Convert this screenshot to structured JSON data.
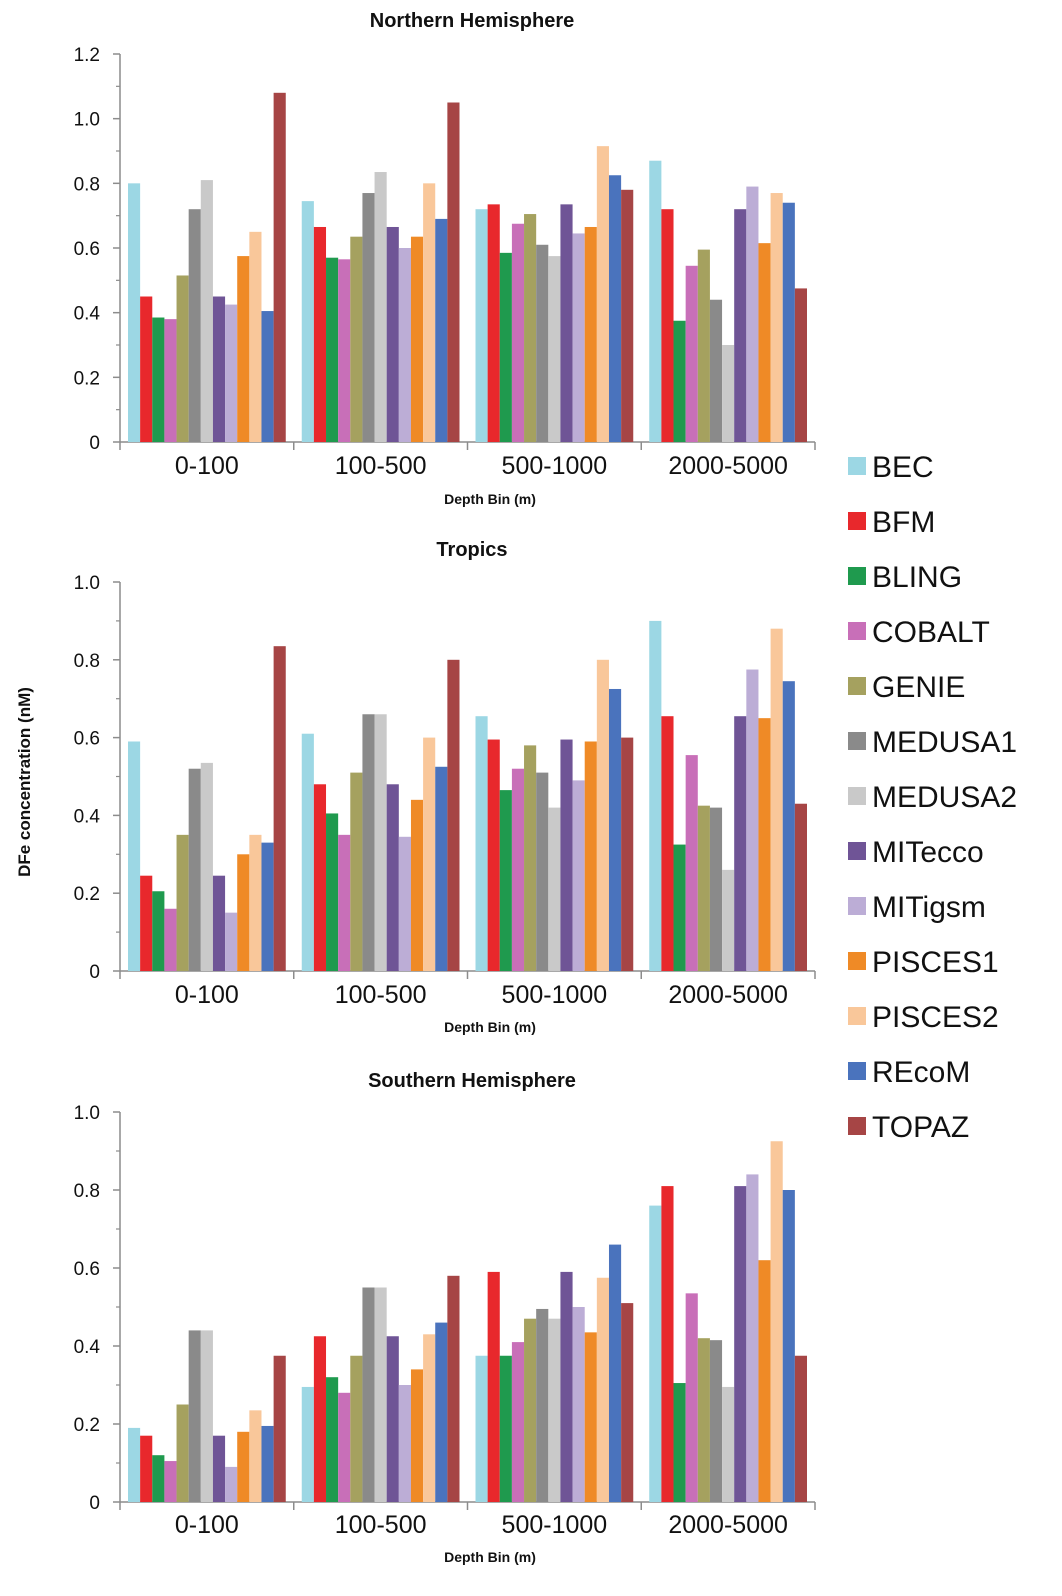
{
  "figure": {
    "ylabel": "DFe concentration (nM)"
  },
  "legend": {
    "entries": [
      {
        "name": "BEC",
        "color": "#9cd7e4"
      },
      {
        "name": "BFM",
        "color": "#e8282c"
      },
      {
        "name": "BLING",
        "color": "#1f9a4e"
      },
      {
        "name": "COBALT",
        "color": "#c86fb8"
      },
      {
        "name": "GENIE",
        "color": "#a5a15f"
      },
      {
        "name": "MEDUSA1",
        "color": "#8a8a8a"
      },
      {
        "name": "MEDUSA2",
        "color": "#c9c9c9"
      },
      {
        "name": "MITecco",
        "color": "#6f5496"
      },
      {
        "name": "MITigsm",
        "color": "#bcadd6"
      },
      {
        "name": "PISCES1",
        "color": "#ef8a26"
      },
      {
        "name": "PISCES2",
        "color": "#f9c79a"
      },
      {
        "name": "REcoM",
        "color": "#4a73bd"
      },
      {
        "name": "TOPAZ",
        "color": "#a64545"
      }
    ]
  },
  "chart_data": [
    {
      "type": "bar",
      "title": "Northern Hemisphere",
      "xlabel": "Depth Bin (m)",
      "ylabel": "DFe concentration (nM)",
      "ylim": [
        0,
        1.2
      ],
      "yticks": [
        "0",
        "0.2",
        "0.4",
        "0.6",
        "0.8",
        "1.0",
        "1.2"
      ],
      "categories": [
        "0-100",
        "100-500",
        "500-1000",
        "2000-5000"
      ],
      "series": [
        {
          "name": "BEC",
          "values": [
            0.8,
            0.745,
            0.72,
            0.87
          ]
        },
        {
          "name": "BFM",
          "values": [
            0.45,
            0.665,
            0.735,
            0.72
          ]
        },
        {
          "name": "BLING",
          "values": [
            0.385,
            0.57,
            0.585,
            0.375
          ]
        },
        {
          "name": "COBALT",
          "values": [
            0.38,
            0.565,
            0.675,
            0.545
          ]
        },
        {
          "name": "GENIE",
          "values": [
            0.515,
            0.635,
            0.705,
            0.595
          ]
        },
        {
          "name": "MEDUSA1",
          "values": [
            0.72,
            0.77,
            0.61,
            0.44
          ]
        },
        {
          "name": "MEDUSA2",
          "values": [
            0.81,
            0.835,
            0.575,
            0.3
          ]
        },
        {
          "name": "MITecco",
          "values": [
            0.45,
            0.665,
            0.735,
            0.72
          ]
        },
        {
          "name": "MITigsm",
          "values": [
            0.425,
            0.6,
            0.645,
            0.79
          ]
        },
        {
          "name": "PISCES1",
          "values": [
            0.575,
            0.635,
            0.665,
            0.615
          ]
        },
        {
          "name": "PISCES2",
          "values": [
            0.65,
            0.8,
            0.915,
            0.77
          ]
        },
        {
          "name": "REcoM",
          "values": [
            0.405,
            0.69,
            0.825,
            0.74
          ]
        },
        {
          "name": "TOPAZ",
          "values": [
            1.08,
            1.05,
            0.78,
            0.475
          ]
        }
      ]
    },
    {
      "type": "bar",
      "title": "Tropics",
      "xlabel": "Depth Bin (m)",
      "ylabel": "DFe concentration (nM)",
      "ylim": [
        0,
        1.0
      ],
      "yticks": [
        "0",
        "0.2",
        "0.4",
        "0.6",
        "0.8",
        "1.0"
      ],
      "categories": [
        "0-100",
        "100-500",
        "500-1000",
        "2000-5000"
      ],
      "series": [
        {
          "name": "BEC",
          "values": [
            0.59,
            0.61,
            0.655,
            0.9
          ]
        },
        {
          "name": "BFM",
          "values": [
            0.245,
            0.48,
            0.595,
            0.655
          ]
        },
        {
          "name": "BLING",
          "values": [
            0.205,
            0.405,
            0.465,
            0.325
          ]
        },
        {
          "name": "COBALT",
          "values": [
            0.16,
            0.35,
            0.52,
            0.555
          ]
        },
        {
          "name": "GENIE",
          "values": [
            0.35,
            0.51,
            0.58,
            0.425
          ]
        },
        {
          "name": "MEDUSA1",
          "values": [
            0.52,
            0.66,
            0.51,
            0.42
          ]
        },
        {
          "name": "MEDUSA2",
          "values": [
            0.535,
            0.66,
            0.42,
            0.26
          ]
        },
        {
          "name": "MITecco",
          "values": [
            0.245,
            0.48,
            0.595,
            0.655
          ]
        },
        {
          "name": "MITigsm",
          "values": [
            0.15,
            0.345,
            0.49,
            0.775
          ]
        },
        {
          "name": "PISCES1",
          "values": [
            0.3,
            0.44,
            0.59,
            0.65
          ]
        },
        {
          "name": "PISCES2",
          "values": [
            0.35,
            0.6,
            0.8,
            0.88
          ]
        },
        {
          "name": "REcoM",
          "values": [
            0.33,
            0.525,
            0.725,
            0.745
          ]
        },
        {
          "name": "TOPAZ",
          "values": [
            0.835,
            0.8,
            0.6,
            0.43
          ]
        }
      ]
    },
    {
      "type": "bar",
      "title": "Southern Hemisphere",
      "xlabel": "Depth Bin (m)",
      "ylabel": "DFe concentration (nM)",
      "ylim": [
        0,
        1.0
      ],
      "yticks": [
        "0",
        "0.2",
        "0.4",
        "0.6",
        "0.8",
        "1.0"
      ],
      "categories": [
        "0-100",
        "100-500",
        "500-1000",
        "2000-5000"
      ],
      "series": [
        {
          "name": "BEC",
          "values": [
            0.19,
            0.295,
            0.375,
            0.76
          ]
        },
        {
          "name": "BFM",
          "values": [
            0.17,
            0.425,
            0.59,
            0.81
          ]
        },
        {
          "name": "BLING",
          "values": [
            0.12,
            0.32,
            0.375,
            0.305
          ]
        },
        {
          "name": "COBALT",
          "values": [
            0.105,
            0.28,
            0.41,
            0.535
          ]
        },
        {
          "name": "GENIE",
          "values": [
            0.25,
            0.375,
            0.47,
            0.42
          ]
        },
        {
          "name": "MEDUSA1",
          "values": [
            0.44,
            0.55,
            0.495,
            0.415
          ]
        },
        {
          "name": "MEDUSA2",
          "values": [
            0.44,
            0.55,
            0.47,
            0.295
          ]
        },
        {
          "name": "MITecco",
          "values": [
            0.17,
            0.425,
            0.59,
            0.81
          ]
        },
        {
          "name": "MITigsm",
          "values": [
            0.09,
            0.3,
            0.5,
            0.84
          ]
        },
        {
          "name": "PISCES1",
          "values": [
            0.18,
            0.34,
            0.435,
            0.62
          ]
        },
        {
          "name": "PISCES2",
          "values": [
            0.235,
            0.43,
            0.575,
            0.925
          ]
        },
        {
          "name": "REcoM",
          "values": [
            0.195,
            0.46,
            0.66,
            0.8
          ]
        },
        {
          "name": "TOPAZ",
          "values": [
            0.375,
            0.58,
            0.51,
            0.375
          ]
        }
      ]
    }
  ]
}
